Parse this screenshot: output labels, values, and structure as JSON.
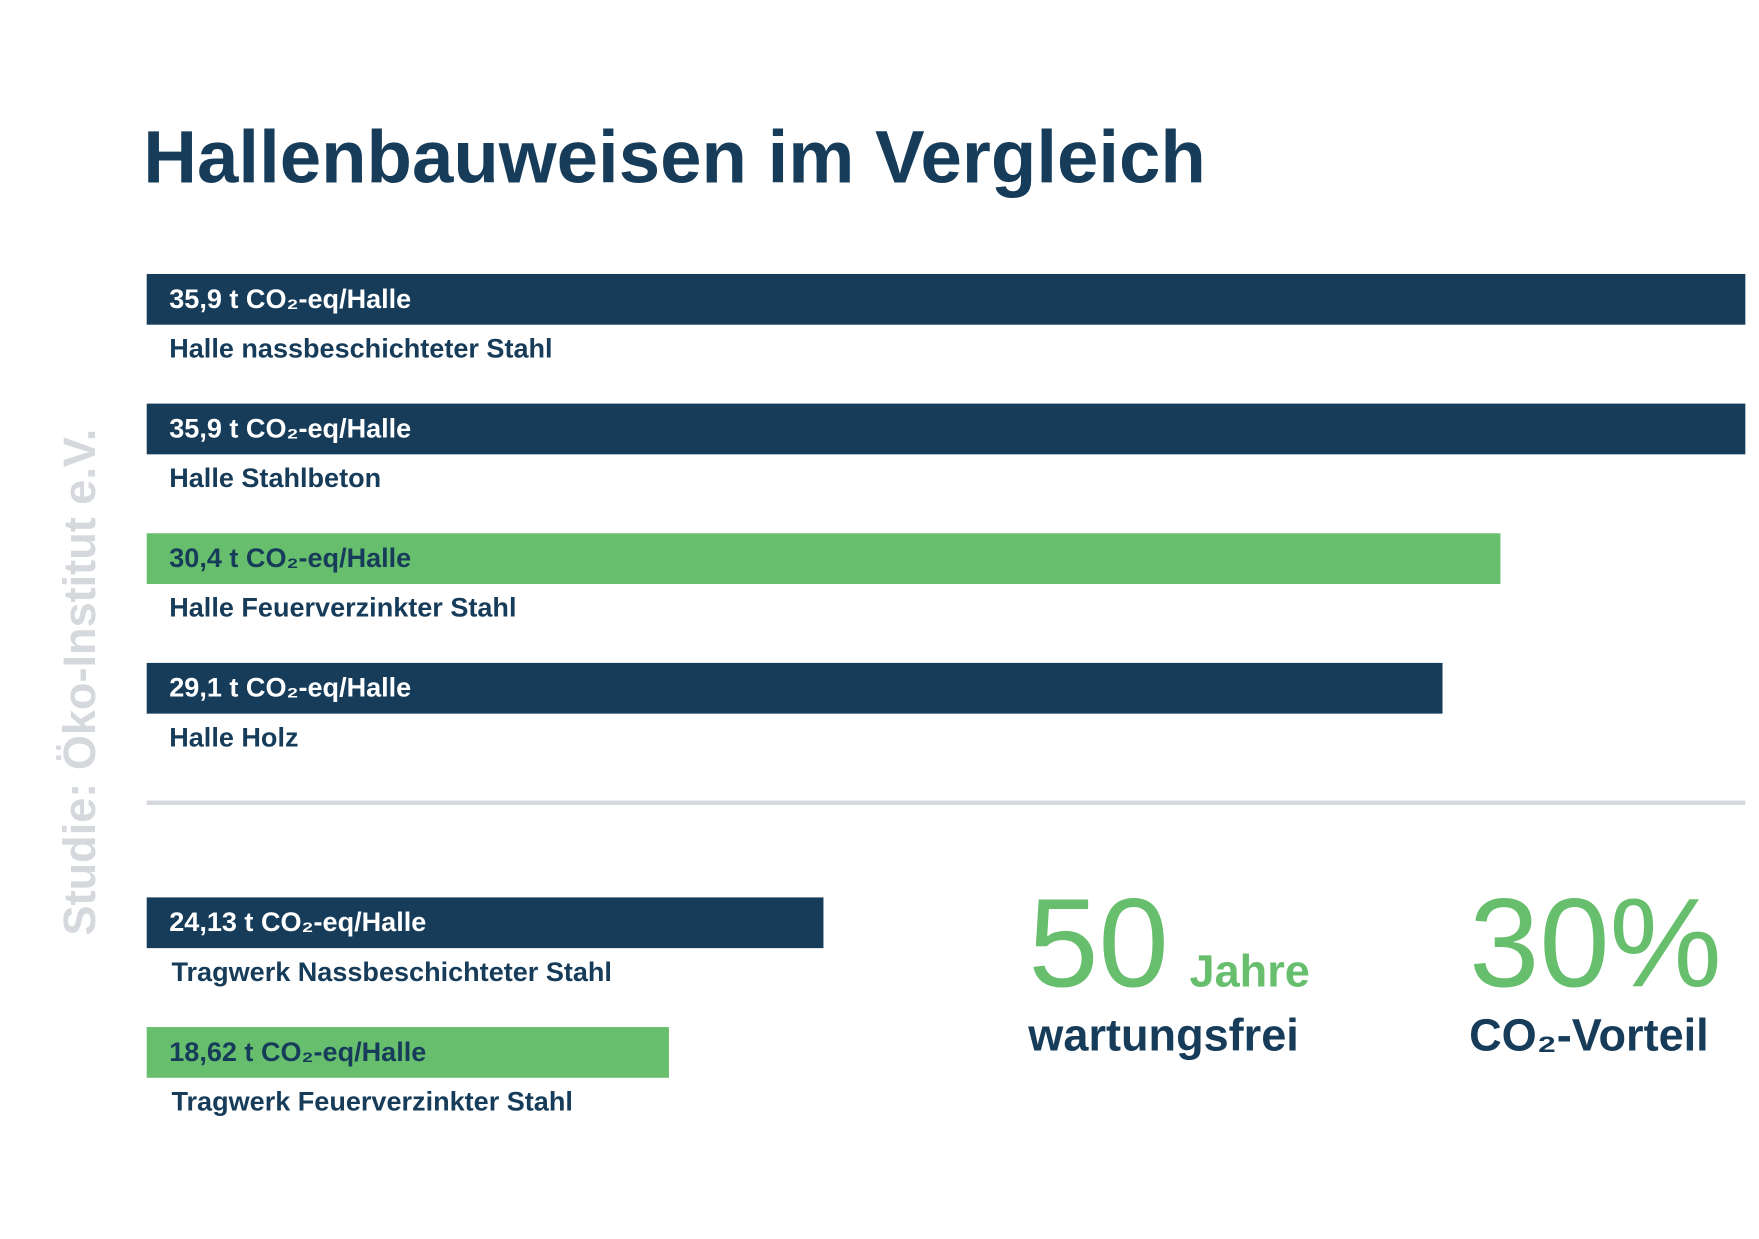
{
  "title": "Hallenbauweisen im Vergleich",
  "source": "Studie: Öko-Institut e.V.",
  "chart_data": [
    {
      "type": "bar",
      "orientation": "horizontal",
      "categories": [
        "Halle nassbeschichteter Stahl",
        "Halle Stahlbeton",
        "Halle Feuerverzinkter Stahl",
        "Halle Holz"
      ],
      "values": [
        35.9,
        35.9,
        30.4,
        29.1
      ],
      "value_labels": [
        "35,9 t CO₂-eq/Halle",
        "35,9 t CO₂-eq/Halle",
        "30,4 t CO₂-eq/Halle",
        "29,1 t CO₂-eq/Halle"
      ],
      "colors": [
        "#163c5a",
        "#163c5a",
        "#67bf6e",
        "#163c5a"
      ],
      "xlim": [
        0,
        35.9
      ]
    },
    {
      "type": "bar",
      "orientation": "horizontal",
      "categories": [
        "Tragwerk Nassbeschichteter Stahl",
        "Tragwerk Feuerverzinkter Stahl"
      ],
      "values": [
        24.13,
        18.62
      ],
      "value_labels": [
        "24,13 t CO₂-eq/Halle",
        "18,62 t CO₂-eq/Halle"
      ],
      "colors": [
        "#163c5a",
        "#67bf6e"
      ],
      "xlim": [
        0,
        57
      ]
    }
  ],
  "stats": [
    {
      "value": "50",
      "unit": "Jahre",
      "label": "wartungsfrei"
    },
    {
      "value": "30%",
      "label": "CO₂-Vorteil"
    }
  ]
}
